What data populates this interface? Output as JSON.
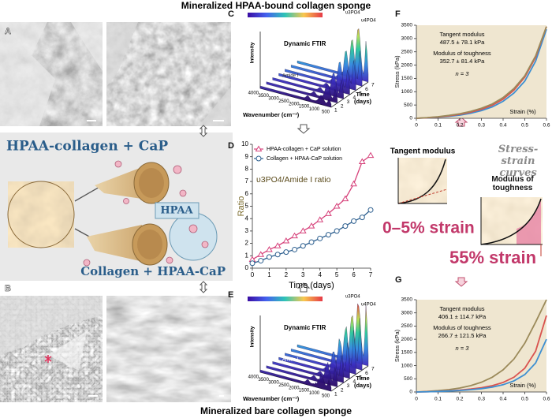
{
  "header": {
    "top_title": "Mineralized HPAA-bound collagen sponge",
    "bottom_title": "Mineralized bare collagen sponge"
  },
  "panel_labels": [
    "A",
    "B",
    "C",
    "D",
    "E",
    "F",
    "G"
  ],
  "schematic": {
    "top_label": "HPAA-collagen + CaP",
    "middle_label": "HPAA",
    "bottom_label": "Collagen + HPAA-CaP"
  },
  "ftir": [
    {
      "title": "Dynamic FTIR",
      "y_label": "Intensity",
      "x_label": "Wavenumber (cm⁻¹)",
      "time_label": "Time",
      "time_unit": "(days)",
      "peak_labels": [
        "υ3PO4",
        "υ4PO4"
      ],
      "band_label": "Amide I",
      "wavenumber_ticks": [
        4000,
        3500,
        3000,
        2500,
        2000,
        1500,
        1000,
        500
      ],
      "time_ticks": [
        1,
        2,
        3,
        4,
        5,
        6,
        7
      ]
    },
    {
      "title": "Dynamic FTIR",
      "y_label": "Intensity",
      "x_label": "Wavenumber (cm⁻¹)",
      "time_label": "Time",
      "time_unit": "(days)",
      "peak_labels": [
        "υ3PO4",
        "υ4PO4"
      ],
      "band_label": "Amide I",
      "wavenumber_ticks": [
        4000,
        3500,
        3000,
        2500,
        2000,
        1500,
        1000,
        500
      ],
      "time_ticks": [
        1,
        2,
        3,
        4,
        5,
        6,
        7
      ]
    }
  ],
  "stress_strain_schematic": {
    "title": "Stress-strain curves",
    "left_label": "Tangent modulus",
    "right_label": "Modulus of toughness",
    "left_range": "0–5% strain",
    "right_range": "55% strain"
  },
  "chart_data": [
    {
      "type": "line",
      "annotation": "υ3PO4/Amide I ratio",
      "xlabel": "Time (days)",
      "ylabel": "Ratio",
      "x": [
        0,
        0.5,
        1,
        1.5,
        2,
        2.5,
        3,
        3.5,
        4,
        4.5,
        5,
        5.5,
        6,
        6.5,
        7
      ],
      "series": [
        {
          "name": "HPAA-collagen + CaP solution",
          "color": "#d6417a",
          "marker": "triangle",
          "values": [
            0.7,
            1.1,
            1.5,
            1.8,
            2.2,
            2.6,
            3.0,
            3.4,
            3.9,
            4.4,
            5.0,
            5.6,
            6.8,
            8.6,
            9.1
          ]
        },
        {
          "name": "Collagen + HPAA-CaP solution",
          "color": "#2d5f8f",
          "marker": "circle",
          "values": [
            0.4,
            0.6,
            0.9,
            1.1,
            1.3,
            1.5,
            1.8,
            2.1,
            2.4,
            2.7,
            3.0,
            3.4,
            3.8,
            4.1,
            4.7
          ]
        }
      ],
      "xlim": [
        0,
        7
      ],
      "xticks": [
        0,
        1,
        2,
        3,
        4,
        5,
        6,
        7
      ],
      "ylim": [
        0,
        10
      ],
      "yticks": [
        0,
        1,
        2,
        3,
        4,
        5,
        6,
        7,
        8,
        9,
        10
      ],
      "legend": "upper left"
    },
    {
      "type": "line",
      "annotations": [
        "Tangent modulus",
        "487.5 ± 78.1 kPa",
        "Modulus of toughness",
        "352.7 ± 81.4 kPa",
        "n = 3"
      ],
      "xlabel": "Strain (%)",
      "ylabel": "Stress (kPa)",
      "x": [
        0,
        0.05,
        0.1,
        0.15,
        0.2,
        0.25,
        0.3,
        0.35,
        0.4,
        0.45,
        0.5,
        0.55,
        0.6
      ],
      "series": [
        {
          "color": "#3d8fd1",
          "values": [
            0,
            15,
            40,
            75,
            120,
            190,
            290,
            430,
            640,
            950,
            1400,
            2150,
            3350
          ]
        },
        {
          "color": "#d9534f",
          "values": [
            0,
            20,
            50,
            95,
            150,
            230,
            340,
            490,
            720,
            1060,
            1550,
            2300,
            3450
          ]
        },
        {
          "color": "#9b8a5a",
          "values": [
            0,
            25,
            60,
            110,
            170,
            260,
            380,
            540,
            780,
            1120,
            1600,
            2350,
            3450
          ]
        }
      ],
      "xlim": [
        0,
        0.6
      ],
      "xticks": [
        0,
        0.1,
        0.2,
        0.3,
        0.4,
        0.5,
        0.6
      ],
      "ylim": [
        0,
        3500
      ],
      "yticks": [
        0,
        500,
        1000,
        1500,
        2000,
        2500,
        3000,
        3500
      ],
      "background": "#efe6d0"
    },
    {
      "type": "line",
      "annotations": [
        "Tangent modulus",
        "406.1 ± 114.7 kPa",
        "Modulus of toughness",
        "266.7 ± 121.5 kPa",
        "n = 3"
      ],
      "xlabel": "Strain (%)",
      "ylabel": "Stress (kPa)",
      "x": [
        0,
        0.05,
        0.1,
        0.15,
        0.2,
        0.25,
        0.3,
        0.35,
        0.4,
        0.45,
        0.5,
        0.55,
        0.6
      ],
      "series": [
        {
          "color": "#9b8a5a",
          "values": [
            0,
            20,
            50,
            90,
            150,
            240,
            370,
            560,
            840,
            1250,
            1850,
            2650,
            3500
          ]
        },
        {
          "color": "#d9534f",
          "values": [
            0,
            10,
            25,
            45,
            70,
            110,
            160,
            240,
            360,
            560,
            900,
            1550,
            2900
          ]
        },
        {
          "color": "#3d8fd1",
          "values": [
            0,
            8,
            20,
            35,
            55,
            85,
            125,
            185,
            275,
            420,
            660,
            1100,
            2000
          ]
        }
      ],
      "xlim": [
        0,
        0.6
      ],
      "xticks": [
        0,
        0.1,
        0.2,
        0.3,
        0.4,
        0.5,
        0.6
      ],
      "ylim": [
        0,
        3500
      ],
      "yticks": [
        0,
        500,
        1000,
        1500,
        2000,
        2500,
        3000,
        3500
      ],
      "background": "#efe6d0"
    }
  ]
}
